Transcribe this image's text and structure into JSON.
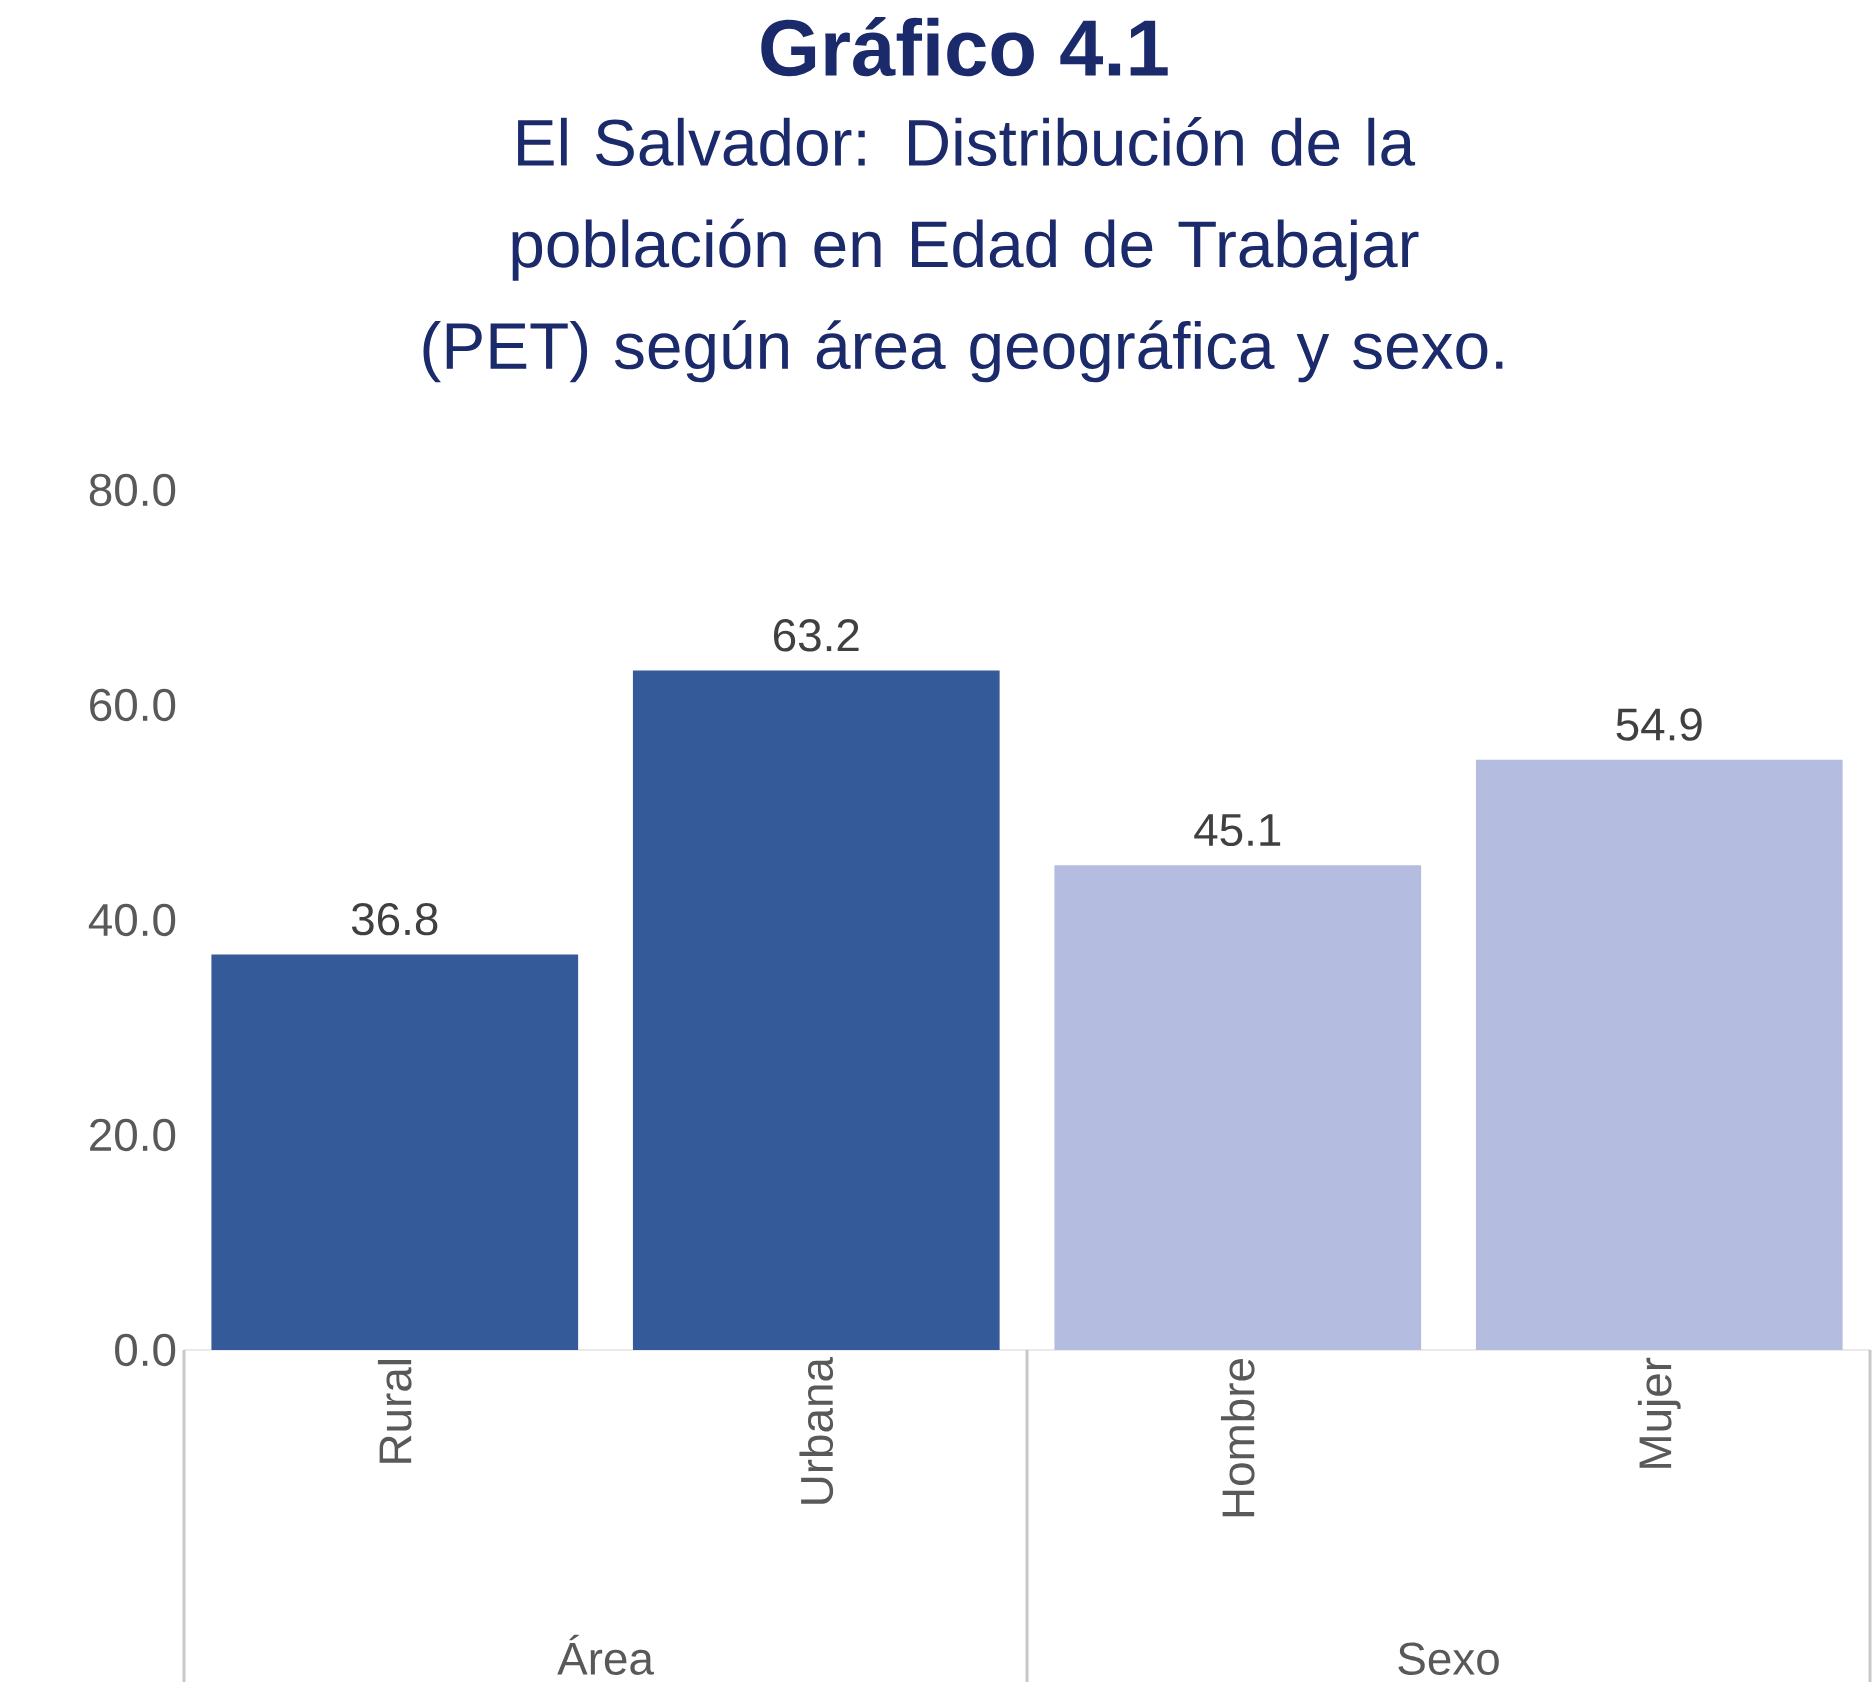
{
  "chart_data": {
    "type": "bar",
    "title": "Gráfico 4.1",
    "subtitle": "El Salvador: Distribución de la población en Edad de Trabajar (PET) según área geográfica y sexo.",
    "categories": [
      "Rural",
      "Urbana",
      "Hombre",
      "Mujer"
    ],
    "values": [
      36.8,
      63.2,
      45.1,
      54.9
    ],
    "colors": [
      "#345a9a",
      "#345a9a",
      "#b4bddf",
      "#b4bddf"
    ],
    "annotations": [
      "Área",
      "Sexo"
    ],
    "ylim": [
      0,
      80
    ],
    "yticks": [
      {
        "value": 0,
        "label": "0.0"
      },
      {
        "value": 20,
        "label": "20.0"
      },
      {
        "value": 40,
        "label": "40.0"
      },
      {
        "value": 60,
        "label": "60.0"
      },
      {
        "value": 80,
        "label": "80.0"
      }
    ],
    "data_labels": true,
    "grid": false
  }
}
